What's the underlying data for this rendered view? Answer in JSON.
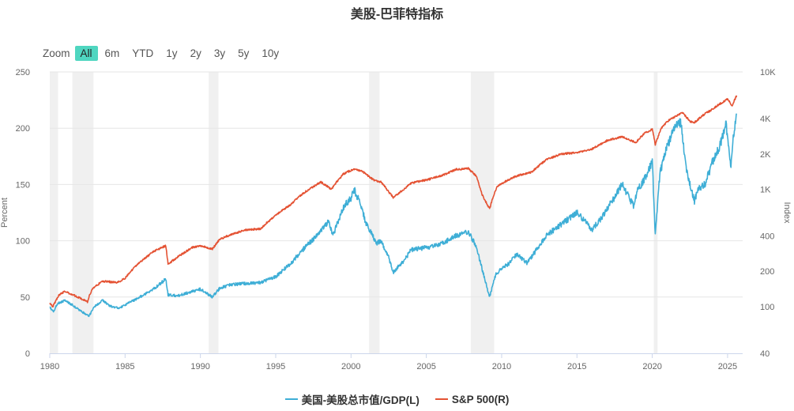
{
  "title": "美股-巴菲特指标",
  "zoom": {
    "label": "Zoom",
    "buttons": [
      "All",
      "6m",
      "YTD",
      "1y",
      "2y",
      "3y",
      "5y",
      "10y"
    ],
    "active": "All"
  },
  "colors": {
    "buffett": "#3eaed6",
    "sp500": "#e45233",
    "recession": "#f0f0f0",
    "grid": "#e6e6e6"
  },
  "chart_data": {
    "type": "line",
    "title": "美股-巴菲特指标",
    "xlabel": "",
    "ylabel_left": "Percent",
    "ylabel_right": "Index",
    "x_ticks": [
      1980,
      1985,
      1990,
      1995,
      2000,
      2005,
      2010,
      2015,
      2020,
      2025
    ],
    "xlim": [
      1980,
      2026
    ],
    "y_left": {
      "ticks": [
        0,
        50,
        100,
        150,
        200,
        250
      ],
      "lim": [
        0,
        250
      ]
    },
    "y_right": {
      "scale": "log",
      "ticks": [
        40,
        100,
        200,
        400,
        "1K",
        "2K",
        "4K",
        "10K"
      ],
      "tick_values": [
        40,
        100,
        200,
        400,
        1000,
        2000,
        4000,
        10000
      ],
      "lim": [
        40,
        10000
      ]
    },
    "grid": true,
    "legend_position": "bottom-center",
    "recessions": [
      [
        1980.0,
        1980.55
      ],
      [
        1981.5,
        1982.9
      ],
      [
        1990.55,
        1991.2
      ],
      [
        2001.2,
        2001.9
      ],
      [
        2007.95,
        2009.5
      ],
      [
        2020.1,
        2020.35
      ]
    ],
    "series": [
      {
        "name": "美国-美股总市值/GDP(L)",
        "axis": "left",
        "x": [
          1980.0,
          1980.25,
          1980.5,
          1981.0,
          1981.5,
          1982.0,
          1982.6,
          1983.0,
          1983.5,
          1984.0,
          1984.6,
          1985.0,
          1986.0,
          1987.0,
          1987.7,
          1987.85,
          1988.5,
          1989.5,
          1990.0,
          1990.8,
          1991.3,
          1992.0,
          1993.0,
          1994.0,
          1995.0,
          1996.0,
          1997.0,
          1997.8,
          1998.5,
          1998.8,
          1999.5,
          2000.0,
          2000.2,
          2000.7,
          2001.0,
          2001.7,
          2002.0,
          2002.5,
          2002.8,
          2003.5,
          2004.0,
          2005.0,
          2006.0,
          2007.0,
          2007.8,
          2008.3,
          2008.7,
          2009.0,
          2009.2,
          2009.6,
          2010.0,
          2010.5,
          2011.0,
          2011.7,
          2012.0,
          2013.0,
          2014.0,
          2015.0,
          2015.5,
          2016.0,
          2016.5,
          2017.0,
          2018.0,
          2018.8,
          2019.0,
          2019.5,
          2020.0,
          2020.2,
          2020.5,
          2021.0,
          2021.5,
          2021.9,
          2022.3,
          2022.8,
          2023.0,
          2023.5,
          2024.0,
          2024.5,
          2024.9,
          2025.2,
          2025.4,
          2025.6
        ],
        "values": [
          41,
          37,
          44,
          47,
          43,
          38,
          33,
          42,
          47,
          42,
          40,
          43,
          50,
          58,
          66,
          52,
          51,
          55,
          57,
          50,
          58,
          61,
          62,
          63,
          68,
          80,
          95,
          105,
          117,
          105,
          130,
          138,
          146,
          130,
          115,
          98,
          100,
          85,
          72,
          82,
          92,
          94,
          97,
          105,
          108,
          95,
          75,
          60,
          50,
          70,
          75,
          80,
          88,
          80,
          86,
          105,
          115,
          125,
          118,
          110,
          118,
          128,
          150,
          130,
          145,
          155,
          170,
          105,
          160,
          185,
          200,
          205,
          160,
          135,
          145,
          150,
          170,
          185,
          205,
          165,
          195,
          213
        ]
      },
      {
        "name": "S&P 500(R)",
        "axis": "right",
        "x": [
          1980.0,
          1980.2,
          1980.6,
          1981.0,
          1981.6,
          1982.5,
          1982.8,
          1983.5,
          1984.5,
          1985.0,
          1986.0,
          1987.0,
          1987.7,
          1987.85,
          1988.5,
          1989.5,
          1990.0,
          1990.8,
          1991.3,
          1992.0,
          1993.0,
          1994.0,
          1995.0,
          1996.0,
          1997.0,
          1998.0,
          1998.7,
          1999.5,
          2000.0,
          2000.3,
          2000.8,
          2001.5,
          2002.0,
          2002.5,
          2002.8,
          2003.5,
          2004.0,
          2005.0,
          2006.0,
          2007.0,
          2007.8,
          2008.3,
          2008.7,
          2009.0,
          2009.2,
          2009.7,
          2010.0,
          2011.0,
          2012.0,
          2013.0,
          2014.0,
          2015.0,
          2016.0,
          2017.0,
          2018.0,
          2018.9,
          2019.5,
          2020.0,
          2020.2,
          2020.6,
          2021.0,
          2022.0,
          2022.5,
          2022.8,
          2023.5,
          2024.0,
          2025.0,
          2025.3,
          2025.6
        ],
        "values": [
          108,
          100,
          125,
          135,
          125,
          110,
          140,
          165,
          160,
          175,
          240,
          300,
          330,
          230,
          265,
          320,
          330,
          310,
          375,
          410,
          450,
          460,
          600,
          740,
          960,
          1150,
          1000,
          1350,
          1450,
          1500,
          1400,
          1200,
          1150,
          950,
          850,
          1000,
          1130,
          1200,
          1300,
          1480,
          1500,
          1300,
          900,
          760,
          680,
          1050,
          1120,
          1300,
          1400,
          1800,
          2000,
          2050,
          2200,
          2600,
          2800,
          2500,
          3000,
          3250,
          2400,
          3300,
          3800,
          4500,
          3800,
          3700,
          4400,
          4800,
          5900,
          5100,
          6300
        ]
      }
    ]
  }
}
